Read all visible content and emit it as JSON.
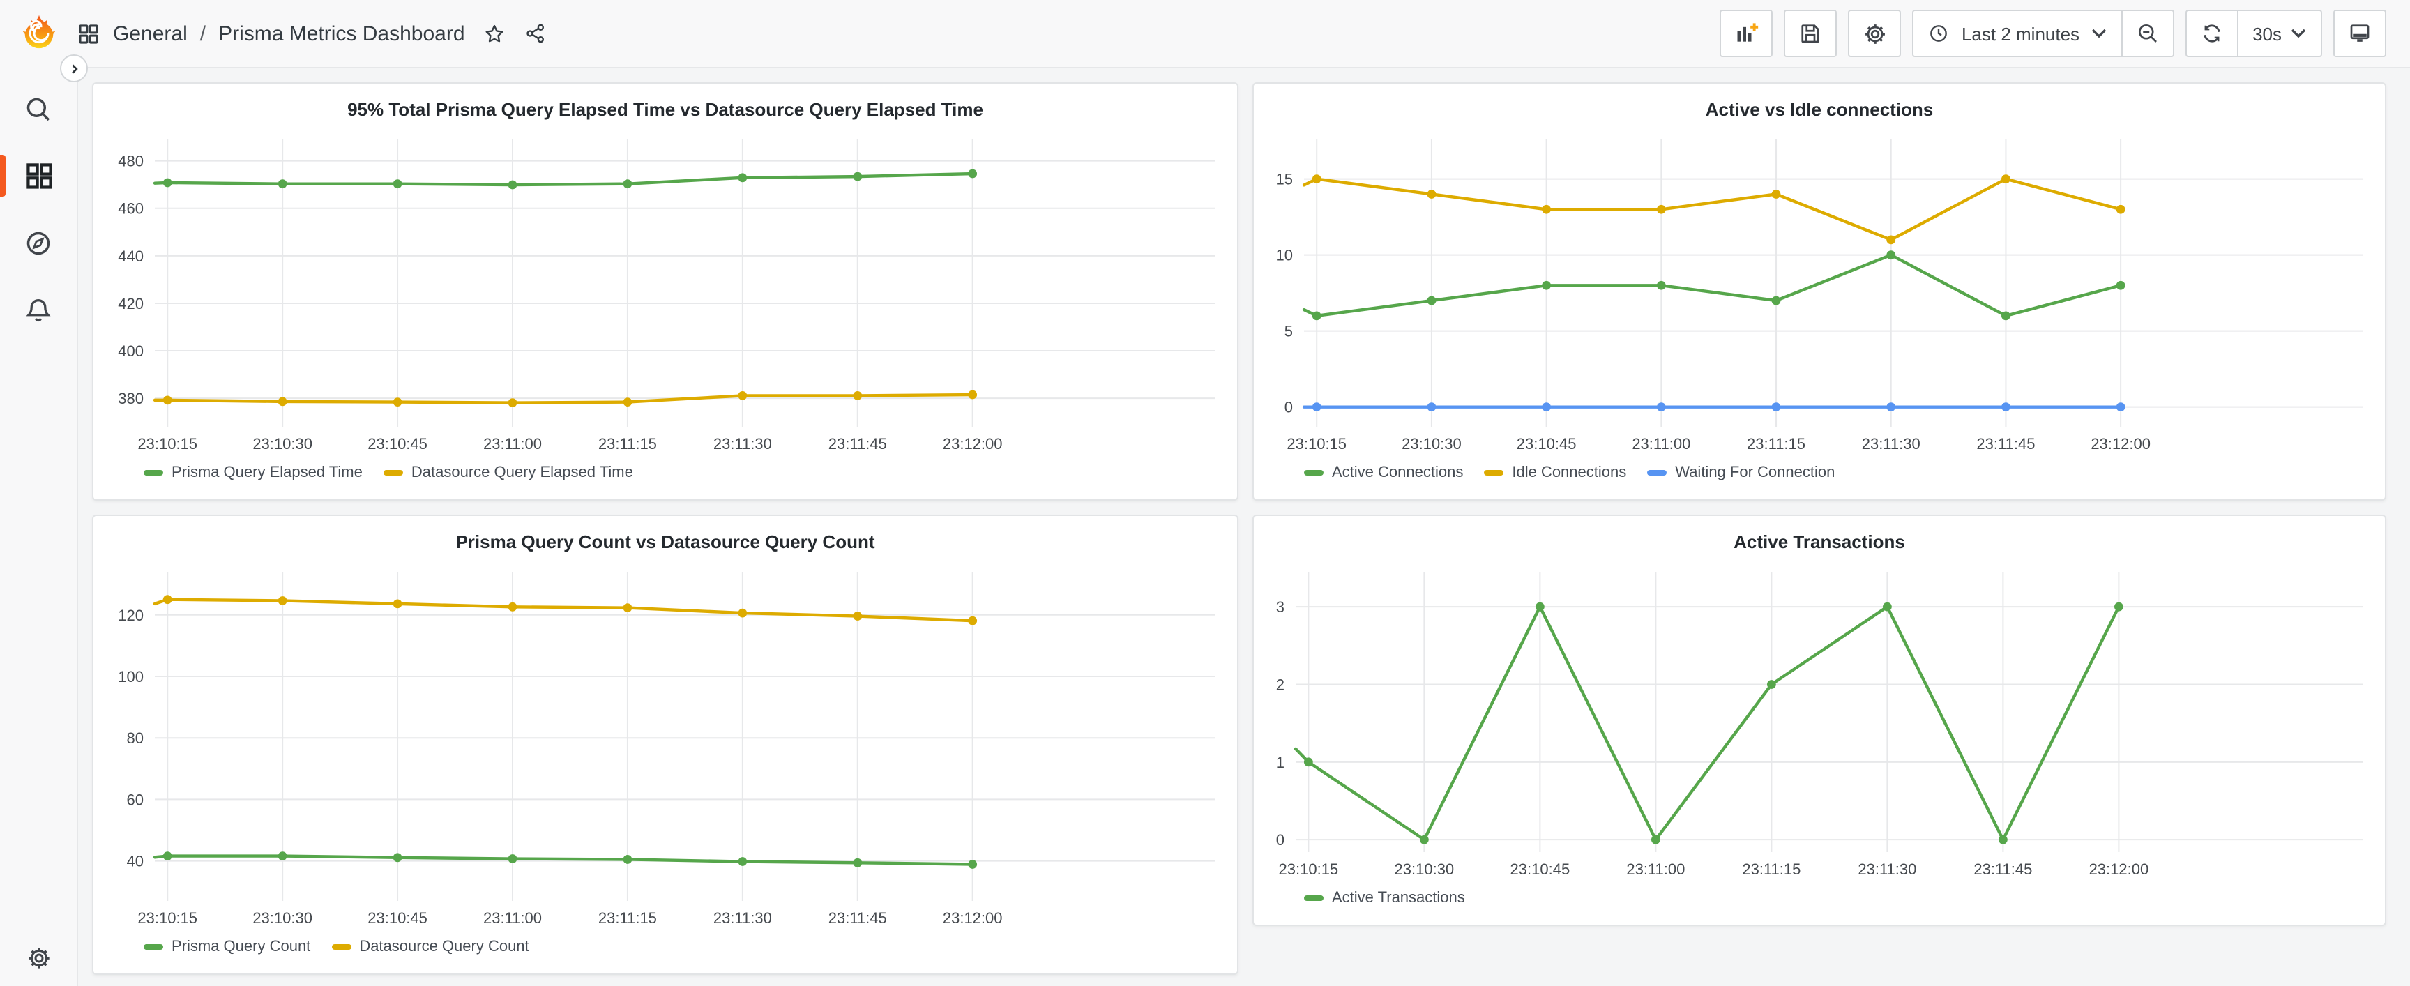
{
  "nav": {
    "breadcrumb": {
      "section": "General",
      "separator": "/",
      "title": "Prisma Metrics Dashboard"
    },
    "toolbar": {
      "time_range_label": "Last 2 minutes",
      "refresh_interval": "30s"
    }
  },
  "colors": {
    "green": "#56A64B",
    "yellow": "#DDAB00",
    "blue": "#5794F2",
    "accent_orange": "#F4591F",
    "grid": "#e7e8ea",
    "panel_bg": "#ffffff",
    "page_bg": "#f4f5f6"
  },
  "icons": {
    "brand": "grafana-flame-logo",
    "breadcrumb_grid": "apps-grid-icon",
    "favorite": "star-outline-icon",
    "share": "share-alt-icon",
    "add_panel": "panel-add-icon",
    "save": "save-icon",
    "dashboard_settings": "gear-icon",
    "time_picker": "clock-icon",
    "caret": "chevron-down-icon",
    "zoom_out": "magnifier-minus-icon",
    "refresh": "refresh-icon",
    "kiosk_mode": "monitor-icon",
    "search": "magnifier-icon",
    "dashboards": "apps-grid-icon",
    "explore": "compass-icon",
    "alerting": "bell-icon",
    "admin": "gear-icon",
    "expand_sidebar": "chevron-right-icon"
  },
  "chart_data": [
    {
      "type": "line",
      "title": "95% Total Prisma Query Elapsed Time vs Datasource Query Elapsed Time",
      "x": [
        "23:10:15",
        "23:10:30",
        "23:10:45",
        "23:11:00",
        "23:11:15",
        "23:11:30",
        "23:11:45",
        "23:12:00"
      ],
      "series": [
        {
          "name": "Prisma Query Elapsed Time",
          "color": "#56A64B",
          "pre": 470.6,
          "values": [
            470.8,
            470.3,
            470.3,
            469.9,
            470.3,
            472.9,
            473.4,
            474.6
          ]
        },
        {
          "name": "Datasource Query Elapsed Time",
          "color": "#DDAB00",
          "pre": 379.2,
          "values": [
            379.2,
            378.6,
            378.4,
            378.1,
            378.4,
            381.1,
            381.1,
            381.5
          ]
        }
      ],
      "yticks": [
        380,
        400,
        420,
        440,
        460,
        480
      ],
      "ylim": [
        368,
        489
      ],
      "grid": true,
      "legend_position": "bottom"
    },
    {
      "type": "line",
      "title": "Active vs Idle connections",
      "x": [
        "23:10:15",
        "23:10:30",
        "23:10:45",
        "23:11:00",
        "23:11:15",
        "23:11:30",
        "23:11:45",
        "23:12:00"
      ],
      "series": [
        {
          "name": "Active Connections",
          "color": "#56A64B",
          "pre": 6.4,
          "values": [
            6,
            7,
            8,
            8,
            7,
            10,
            6,
            8
          ]
        },
        {
          "name": "Idle Connections",
          "color": "#DDAB00",
          "pre": 14.6,
          "values": [
            15,
            14,
            13,
            13,
            14,
            11,
            15,
            13
          ]
        },
        {
          "name": "Waiting For Connection",
          "color": "#5794F2",
          "pre": 0,
          "values": [
            0,
            0,
            0,
            0,
            0,
            0,
            0,
            0
          ]
        }
      ],
      "yticks": [
        0,
        5,
        10,
        15
      ],
      "ylim": [
        -1.3,
        17.6
      ],
      "grid": true,
      "legend_position": "bottom"
    },
    {
      "type": "line",
      "title": "Prisma Query Count vs Datasource Query Count",
      "x": [
        "23:10:15",
        "23:10:30",
        "23:10:45",
        "23:11:00",
        "23:11:15",
        "23:11:30",
        "23:11:45",
        "23:12:00"
      ],
      "series": [
        {
          "name": "Prisma Query Count",
          "color": "#56A64B",
          "pre": 41.2,
          "values": [
            41.6,
            41.6,
            41.1,
            40.7,
            40.5,
            39.8,
            39.4,
            38.9
          ]
        },
        {
          "name": "Datasource Query Count",
          "color": "#DDAB00",
          "pre": 123.6,
          "values": [
            125,
            124.6,
            123.6,
            122.6,
            122.3,
            120.6,
            119.6,
            118.1
          ]
        }
      ],
      "yticks": [
        40,
        60,
        80,
        100,
        120
      ],
      "ylim": [
        27,
        134
      ],
      "grid": true,
      "legend_position": "bottom"
    },
    {
      "type": "line",
      "title": "Active Transactions",
      "x": [
        "23:10:15",
        "23:10:30",
        "23:10:45",
        "23:11:00",
        "23:11:15",
        "23:11:30",
        "23:11:45",
        "23:12:00"
      ],
      "series": [
        {
          "name": "Active Transactions",
          "color": "#56A64B",
          "pre": 1.17,
          "values": [
            1,
            0,
            3,
            0,
            2,
            3,
            0,
            3
          ]
        }
      ],
      "yticks": [
        0,
        1,
        2,
        3
      ],
      "ylim": [
        -0.16,
        3.45
      ],
      "grid": true,
      "legend_position": "bottom"
    }
  ]
}
